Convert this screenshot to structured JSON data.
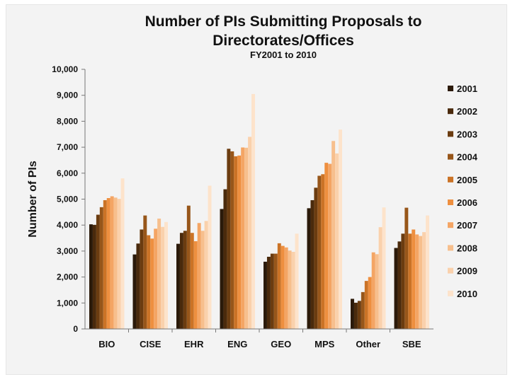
{
  "chart_data": {
    "type": "bar",
    "title_line1": "Number of PIs Submitting Proposals to",
    "title_line2": "Directorates/Offices",
    "subtitle": "FY2001 to 2010",
    "ylabel": "Number of PIs",
    "xlabel": "",
    "ylim": [
      0,
      10000
    ],
    "yticks": [
      "0",
      "1,000",
      "2,000",
      "3,000",
      "4,000",
      "5,000",
      "6,000",
      "7,000",
      "8,000",
      "9,000",
      "10,000"
    ],
    "grid": false,
    "legend_position": "right",
    "categories": [
      "BIO",
      "CISE",
      "EHR",
      "ENG",
      "GEO",
      "MPS",
      "Other",
      "SBE"
    ],
    "series": [
      {
        "name": "2001",
        "color": "#2b1a0a",
        "values": [
          4030,
          2870,
          3280,
          4620,
          2590,
          4650,
          1160,
          3120
        ]
      },
      {
        "name": "2002",
        "color": "#4a2a0c",
        "values": [
          4010,
          3290,
          3700,
          5380,
          2780,
          4960,
          1010,
          3370
        ]
      },
      {
        "name": "2003",
        "color": "#6b3c10",
        "values": [
          4400,
          3830,
          3780,
          6940,
          2900,
          5440,
          1080,
          3670
        ]
      },
      {
        "name": "2004",
        "color": "#97561a",
        "values": [
          4690,
          4370,
          4750,
          6840,
          2900,
          5900,
          1420,
          4670
        ]
      },
      {
        "name": "2005",
        "color": "#cb7326",
        "values": [
          4960,
          3610,
          3700,
          6650,
          3300,
          5960,
          1850,
          3670
        ]
      },
      {
        "name": "2006",
        "color": "#ee8f3f",
        "values": [
          5040,
          3480,
          3380,
          6680,
          3200,
          6400,
          2000,
          3830
        ]
      },
      {
        "name": "2007",
        "color": "#f4a564",
        "values": [
          5110,
          3860,
          4080,
          6990,
          3140,
          6360,
          2950,
          3640
        ]
      },
      {
        "name": "2008",
        "color": "#f7bf8d",
        "values": [
          5060,
          4250,
          3780,
          6980,
          3020,
          7240,
          2880,
          3580
        ]
      },
      {
        "name": "2009",
        "color": "#fad1ac",
        "values": [
          5010,
          3930,
          4160,
          7400,
          2970,
          6760,
          3920,
          3730
        ]
      },
      {
        "name": "2010",
        "color": "#fde3cb",
        "values": [
          5800,
          4120,
          5520,
          9050,
          3670,
          7680,
          4680,
          4370
        ]
      }
    ]
  }
}
